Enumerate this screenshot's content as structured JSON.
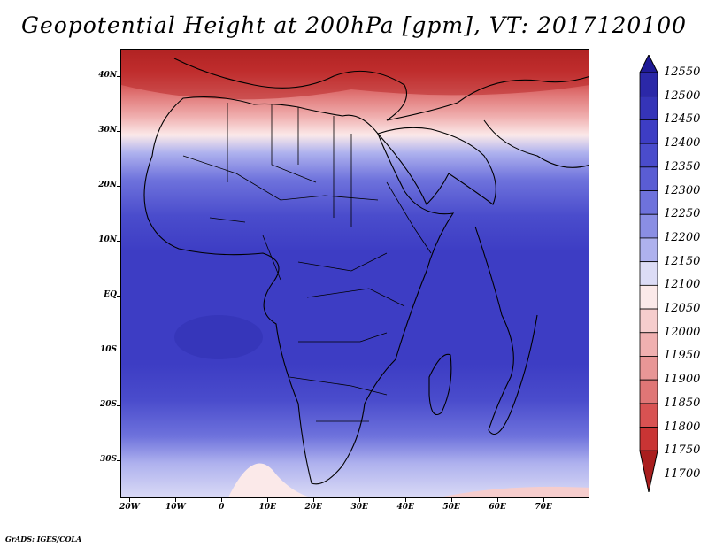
{
  "title": "Geopotential Height at 200hPa [gpm], VT: 2017120100",
  "footer": "GrADS: IGES/COLA",
  "map": {
    "lon_range": [
      -22,
      80
    ],
    "lat_range": [
      -37,
      45
    ],
    "lat_ticks": [
      {
        "value": 40,
        "label": "40N"
      },
      {
        "value": 30,
        "label": "30N"
      },
      {
        "value": 20,
        "label": "20N"
      },
      {
        "value": 10,
        "label": "10N"
      },
      {
        "value": 0,
        "label": "EQ"
      },
      {
        "value": -10,
        "label": "10S"
      },
      {
        "value": -20,
        "label": "20S"
      },
      {
        "value": -30,
        "label": "30S"
      }
    ],
    "lon_ticks": [
      {
        "value": -20,
        "label": "20W"
      },
      {
        "value": -10,
        "label": "10W"
      },
      {
        "value": 0,
        "label": "0"
      },
      {
        "value": 10,
        "label": "10E"
      },
      {
        "value": 20,
        "label": "20E"
      },
      {
        "value": 30,
        "label": "30E"
      },
      {
        "value": 40,
        "label": "40E"
      },
      {
        "value": 50,
        "label": "50E"
      },
      {
        "value": 60,
        "label": "60E"
      },
      {
        "value": 70,
        "label": "70E"
      }
    ]
  },
  "colorbar": {
    "levels": [
      "12550",
      "12500",
      "12450",
      "12400",
      "12350",
      "12300",
      "12250",
      "12200",
      "12150",
      "12100",
      "12050",
      "12000",
      "11950",
      "11900",
      "11850",
      "11800",
      "11750",
      "11700"
    ],
    "colors": [
      "#1f1a96",
      "#2b28a8",
      "#3534b8",
      "#3d3dc4",
      "#4a4ccc",
      "#5a5dd4",
      "#6e72dc",
      "#8a8ee4",
      "#aeb1ee",
      "#dcdcf6",
      "#fbe9e9",
      "#f6cdcd",
      "#f0b0b0",
      "#e89696",
      "#e07676",
      "#d85252",
      "#c93434",
      "#a91e1e"
    ]
  }
}
